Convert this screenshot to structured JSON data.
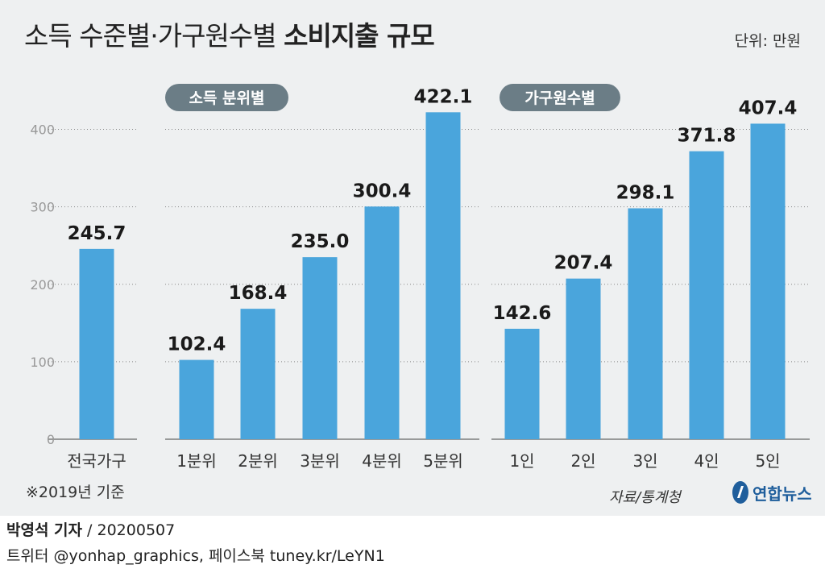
{
  "title": {
    "light": "소득 수준별·가구원수별",
    "bold": "소비지출 규모"
  },
  "unit": "단위: 만원",
  "note": "※2019년 기준",
  "source": "자료/통계청",
  "logo": "연합뉴스",
  "byline": {
    "reporter": "박영석 기자",
    "sep": " / ",
    "date": "20200507"
  },
  "twitter": "트위터 @yonhap_graphics, 페이스북 tuney.kr/LeYN1",
  "colors": {
    "bar": "#4aa5dc",
    "pill": "#6b7d86",
    "panel": "#eef0f1"
  },
  "chart_data": [
    {
      "type": "bar",
      "group_label": "",
      "categories": [
        "전국가구"
      ],
      "values": [
        245.7
      ],
      "ylim": [
        0,
        450
      ],
      "yticks": [
        0,
        100,
        200,
        300,
        400
      ]
    },
    {
      "type": "bar",
      "group_label": "소득 분위별",
      "categories": [
        "1분위",
        "2분위",
        "3분위",
        "4분위",
        "5분위"
      ],
      "values": [
        102.4,
        168.4,
        235.0,
        300.4,
        422.1
      ],
      "ylim": [
        0,
        450
      ]
    },
    {
      "type": "bar",
      "group_label": "가구원수별",
      "categories": [
        "1인",
        "2인",
        "3인",
        "4인",
        "5인"
      ],
      "values": [
        142.6,
        207.4,
        298.1,
        371.8,
        407.4
      ],
      "ylim": [
        0,
        450
      ]
    }
  ]
}
